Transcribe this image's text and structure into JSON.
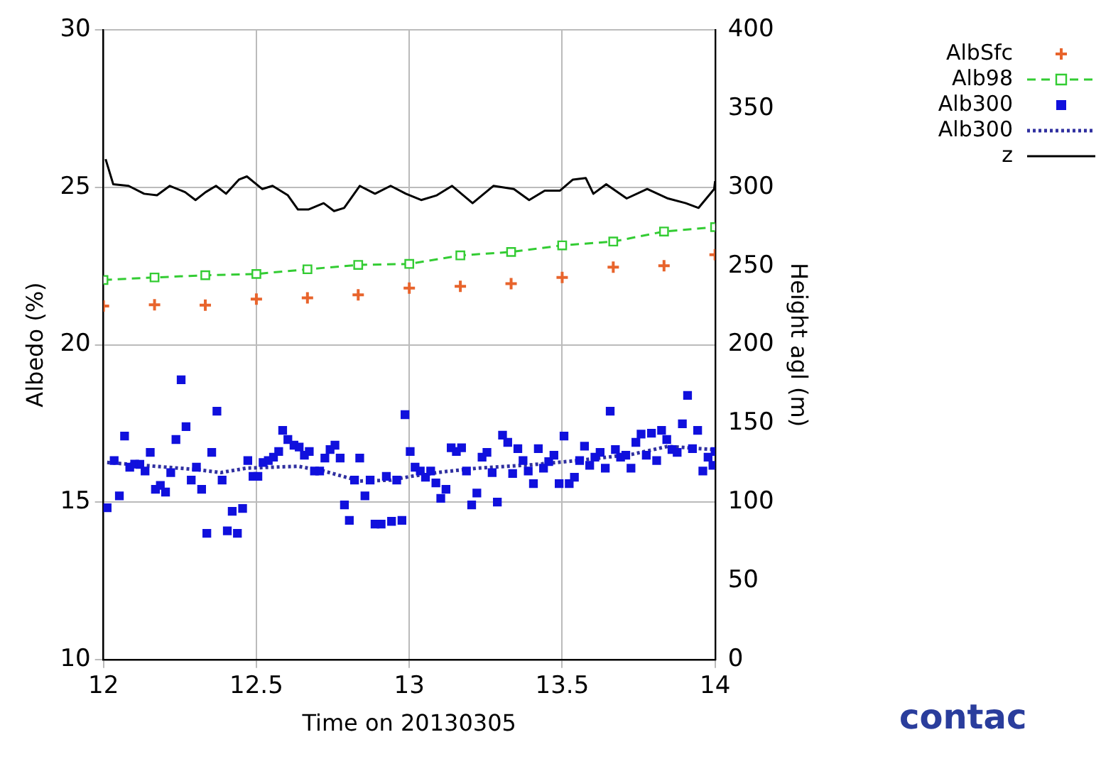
{
  "chart_data": {
    "type": "line",
    "xlabel": "Time on 20130305",
    "ylabel": "Albedo (%)",
    "y2label": "Height agl (m)",
    "xlim": [
      12,
      14
    ],
    "xticks": [
      12,
      12.5,
      13,
      13.5,
      14
    ],
    "ylim": [
      10,
      30
    ],
    "yticks": [
      10,
      15,
      20,
      25,
      30
    ],
    "y2lim": [
      0,
      400
    ],
    "y2ticks": [
      0,
      50,
      100,
      150,
      200,
      250,
      300,
      350,
      400
    ],
    "grid": true,
    "legend": "right",
    "annotations": [
      "contac"
    ],
    "series": [
      {
        "name": "AlbSfc",
        "type": "scatter",
        "marker": "cross",
        "color": "#e8642c",
        "x": [
          12,
          12.167,
          12.333,
          12.5,
          12.667,
          12.833,
          13,
          13.167,
          13.333,
          13.5,
          13.667,
          13.833,
          14
        ],
        "values": [
          21.23,
          21.27,
          21.26,
          21.45,
          21.49,
          21.59,
          21.8,
          21.86,
          21.94,
          22.14,
          22.47,
          22.51,
          22.86
        ]
      },
      {
        "name": "Alb98",
        "marker": "square",
        "line_style": "dashed",
        "color": "#33cc33",
        "x": [
          12,
          12.167,
          12.333,
          12.5,
          12.667,
          12.833,
          13,
          13.167,
          13.333,
          13.5,
          13.667,
          13.833,
          14
        ],
        "values": [
          22.06,
          22.14,
          22.21,
          22.25,
          22.4,
          22.54,
          22.57,
          22.84,
          22.95,
          23.16,
          23.28,
          23.6,
          23.74
        ]
      },
      {
        "name": "Alb300",
        "type": "scatter",
        "marker": "square",
        "color": "#1010dd",
        "x": [
          12.012,
          12.035,
          12.052,
          12.069,
          12.086,
          12.102,
          12.119,
          12.136,
          12.153,
          12.17,
          12.186,
          12.203,
          12.22,
          12.237,
          12.254,
          12.27,
          12.287,
          12.304,
          12.321,
          12.338,
          12.354,
          12.371,
          12.388,
          12.405,
          12.421,
          12.438,
          12.455,
          12.472,
          12.489,
          12.505,
          12.522,
          12.539,
          12.556,
          12.573,
          12.586,
          12.603,
          12.623,
          12.64,
          12.657,
          12.673,
          12.69,
          12.707,
          12.724,
          12.741,
          12.757,
          12.774,
          12.788,
          12.804,
          12.821,
          12.838,
          12.855,
          12.872,
          12.888,
          12.908,
          12.925,
          12.942,
          12.959,
          12.976,
          12.986,
          13.003,
          13.019,
          13.036,
          13.053,
          13.07,
          13.087,
          13.103,
          13.12,
          13.137,
          13.154,
          13.171,
          13.187,
          13.204,
          13.221,
          13.238,
          13.254,
          13.271,
          13.288,
          13.305,
          13.322,
          13.338,
          13.355,
          13.372,
          13.389,
          13.406,
          13.422,
          13.439,
          13.456,
          13.473,
          13.49,
          13.506,
          13.523,
          13.54,
          13.557,
          13.573,
          13.59,
          13.607,
          13.624,
          13.641,
          13.657,
          13.674,
          13.691,
          13.708,
          13.725,
          13.741,
          13.758,
          13.775,
          13.792,
          13.809,
          13.825,
          13.842,
          13.859,
          13.876,
          13.893,
          13.91,
          13.926,
          13.943,
          13.96,
          13.977,
          13.993,
          14
        ],
        "values": [
          14.82,
          16.32,
          15.2,
          17.1,
          16.11,
          16.21,
          16.2,
          15.99,
          16.58,
          15.41,
          15.53,
          15.32,
          15.94,
          16.99,
          18.89,
          17.4,
          15.7,
          16.11,
          15.41,
          14.01,
          16.58,
          17.89,
          15.7,
          14.09,
          14.71,
          14.01,
          14.8,
          16.32,
          15.82,
          15.82,
          16.26,
          16.32,
          16.43,
          16.61,
          17.28,
          16.99,
          16.81,
          16.75,
          16.49,
          16.61,
          15.99,
          15.99,
          16.4,
          16.67,
          16.81,
          16.4,
          14.91,
          14.42,
          15.7,
          16.4,
          15.2,
          15.7,
          14.3,
          14.3,
          15.82,
          14.39,
          15.7,
          14.42,
          17.78,
          16.61,
          16.11,
          15.99,
          15.79,
          15.99,
          15.61,
          15.12,
          15.41,
          16.73,
          16.61,
          16.73,
          15.99,
          14.91,
          15.29,
          16.43,
          16.58,
          15.94,
          15,
          17.13,
          16.9,
          15.91,
          16.7,
          16.32,
          15.99,
          15.59,
          16.7,
          16.08,
          16.29,
          16.49,
          15.59,
          17.1,
          15.59,
          15.79,
          16.32,
          16.78,
          16.17,
          16.43,
          16.58,
          16.08,
          17.89,
          16.67,
          16.43,
          16.49,
          16.08,
          16.9,
          17.16,
          16.49,
          17.19,
          16.32,
          17.28,
          16.99,
          16.67,
          16.58,
          17.49,
          18.39,
          16.7,
          17.28,
          15.99,
          16.43,
          16.17,
          16.61
        ]
      },
      {
        "name": "Alb300",
        "marker": "none",
        "line_style": "dotted",
        "color": "#3030a0",
        "x": [
          12.012,
          12.3,
          12.384,
          12.468,
          12.636,
          12.72,
          12.838,
          12.939,
          13.006,
          13.107,
          13.224,
          13.392,
          13.56,
          13.728,
          13.845,
          13.997
        ],
        "values": [
          16.26,
          16.04,
          15.94,
          16.08,
          16.14,
          15.99,
          15.67,
          15.7,
          15.82,
          15.96,
          16.08,
          16.18,
          16.33,
          16.52,
          16.77,
          16.67
        ]
      },
      {
        "name": "z",
        "marker": "none",
        "line_style": "solid",
        "color": "#000000",
        "axis": "y2",
        "x": [
          12.007,
          12.032,
          12.082,
          12.133,
          12.175,
          12.217,
          12.267,
          12.301,
          12.334,
          12.368,
          12.401,
          12.443,
          12.469,
          12.519,
          12.553,
          12.603,
          12.636,
          12.67,
          12.72,
          12.754,
          12.787,
          12.838,
          12.888,
          12.939,
          12.989,
          13.039,
          13.09,
          13.14,
          13.207,
          13.275,
          13.342,
          13.392,
          13.443,
          13.493,
          13.535,
          13.577,
          13.602,
          13.644,
          13.711,
          13.778,
          13.846,
          13.904,
          13.946,
          13.997,
          14
        ],
        "values": [
          318,
          302,
          301,
          296,
          295,
          301,
          297,
          292,
          297,
          301,
          296,
          305,
          307,
          299,
          301,
          295,
          286,
          286,
          290,
          285,
          287,
          301,
          296,
          301,
          296,
          292,
          295,
          301,
          290,
          301,
          299,
          292,
          298,
          298,
          305,
          306,
          296,
          302,
          293,
          299,
          293,
          290,
          287,
          299,
          304
        ]
      }
    ]
  }
}
